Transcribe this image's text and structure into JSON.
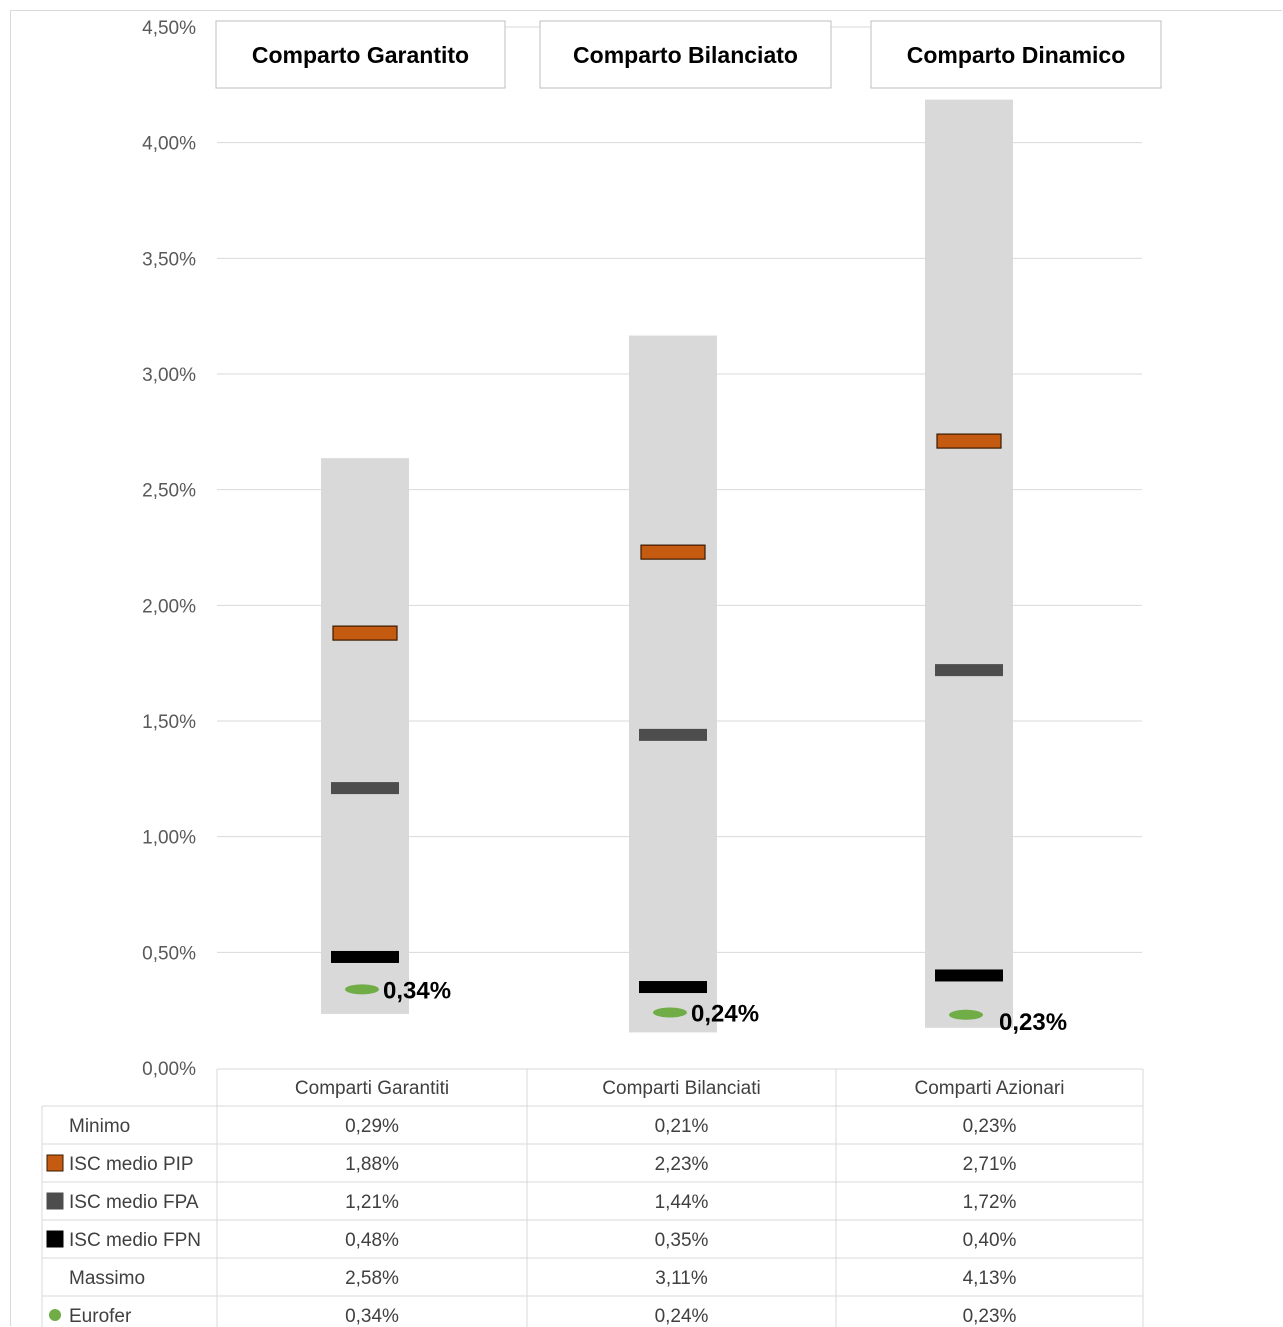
{
  "chart_data": {
    "type": "bar",
    "title": "",
    "xlabel": "",
    "ylabel": "",
    "ylim": [
      0,
      0.045
    ],
    "y_tick_labels": [
      "0,00%",
      "0,50%",
      "1,00%",
      "1,50%",
      "2,00%",
      "2,50%",
      "3,00%",
      "3,50%",
      "4,00%",
      "4,50%"
    ],
    "grid": true,
    "legend": "data-table-bottom",
    "panel_labels": [
      "Comparto Garantito",
      "Comparto Bilanciato",
      "Comparto Dinamico"
    ],
    "categories": [
      "Comparti Garantiti",
      "Comparti Bilanciati",
      "Comparti Azionari"
    ],
    "series": [
      {
        "name": "Minimo",
        "key": "min",
        "color": "#ffffff",
        "values": [
          0.0029,
          0.0021,
          0.0023
        ],
        "labels": [
          "0,29%",
          "0,21%",
          "0,23%"
        ]
      },
      {
        "name": "ISC medio PIP",
        "key": "pip",
        "color": "#c55a11",
        "values": [
          0.0188,
          0.0223,
          0.0271
        ],
        "labels": [
          "1,88%",
          "2,23%",
          "2,71%"
        ]
      },
      {
        "name": "ISC medio FPA",
        "key": "fpa",
        "color": "#4d4d4d",
        "values": [
          0.0121,
          0.0144,
          0.0172
        ],
        "labels": [
          "1,21%",
          "1,44%",
          "1,72%"
        ]
      },
      {
        "name": "ISC medio FPN",
        "key": "fpn",
        "color": "#000000",
        "values": [
          0.0048,
          0.0035,
          0.004
        ],
        "labels": [
          "0,48%",
          "0,35%",
          "0,40%"
        ]
      },
      {
        "name": "Massimo",
        "key": "max",
        "color": "#ffffff",
        "values": [
          0.0258,
          0.0311,
          0.0413
        ],
        "labels": [
          "2,58%",
          "3,11%",
          "4,13%"
        ]
      },
      {
        "name": "Eurofer",
        "key": "eurofer",
        "color": "#70ad47",
        "values": [
          0.0034,
          0.0024,
          0.0023
        ],
        "labels": [
          "0,34%",
          "0,24%",
          "0,23%"
        ]
      }
    ],
    "data_labels": [
      "0,34%",
      "0,24%",
      "0,23%"
    ],
    "range_color": "#d9d9d9"
  }
}
